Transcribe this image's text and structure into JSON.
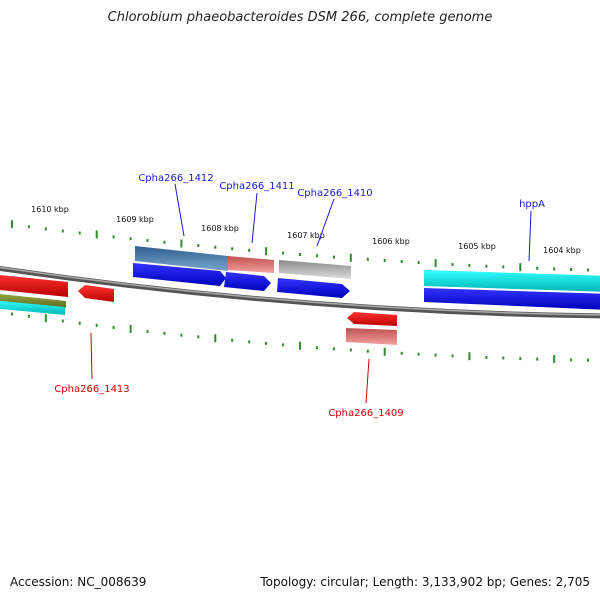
{
  "title": "Chlorobium phaeobacteroides DSM 266, complete genome",
  "footer": {
    "accession": "Accession: NC_008639",
    "summary": "Topology: circular; Length: 3,133,902 bp; Genes: 2,705"
  },
  "scale_labels": [
    "1610 kbp",
    "1609 kbp",
    "1608 kbp",
    "1607 kbp",
    "1606 kbp",
    "1605 kbp",
    "1604 kbp"
  ],
  "gene_labels": {
    "cpha266_1412": "Cpha266_1412",
    "cpha266_1411": "Cpha266_1411",
    "cpha266_1410": "Cpha266_1410",
    "hppA": "hppA",
    "cpha266_1413": "Cpha266_1413",
    "cpha266_1409": "Cpha266_1409"
  },
  "colors": {
    "forward_label": "#1a1acc",
    "reverse_label": "#cc0000",
    "backbone": "#808080",
    "tick": "#2e8b2e",
    "cds_forward": "#0000ee",
    "cds_reverse": "#ee0000",
    "feature_steelblue": "#5a88b8",
    "feature_salmon": "#e88080",
    "feature_gray": "#c0c0c0",
    "feature_cyan": "#00dddd",
    "feature_olive": "#7a8a30"
  }
}
